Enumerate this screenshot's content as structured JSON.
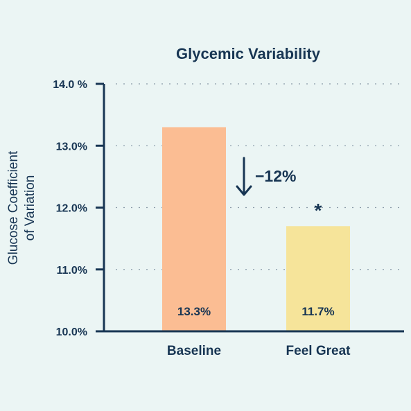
{
  "chart_data": {
    "type": "bar",
    "title": "Glycemic Variability",
    "ylabel_lines": [
      "Glucose Coefficient",
      "of Variation"
    ],
    "xlabel": "",
    "categories": [
      "Baseline",
      "Feel Great"
    ],
    "values": [
      13.3,
      11.7
    ],
    "data_labels": [
      "13.3%",
      "11.7%"
    ],
    "bar_colors": [
      "#FBBD93",
      "#F6E49A"
    ],
    "ylim": [
      10.0,
      14.0
    ],
    "yticks": [
      10.0,
      11.0,
      12.0,
      13.0,
      14.0
    ],
    "ytick_labels": [
      "10.0%",
      "11.0%",
      "12.0%",
      "13.0%",
      "14.0 %"
    ],
    "grid": "horizontal dotted",
    "annotations": {
      "change": "−12%",
      "change_arrow": "down-arrow-icon",
      "significance": "*",
      "significance_on": "Feel Great"
    }
  },
  "colors": {
    "background": "#EBF5F4",
    "text": "#173553",
    "axis": "#173553",
    "grid": "#8A9AA8"
  }
}
